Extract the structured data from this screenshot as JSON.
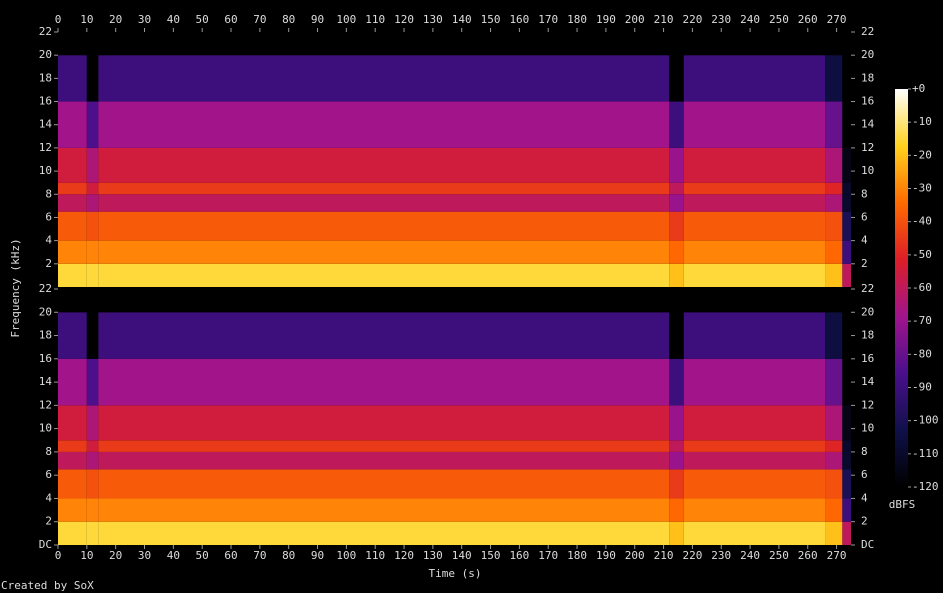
{
  "chart_data": {
    "type": "spectrogram",
    "xlabel": "Time (s)",
    "ylabel": "Frequency (kHz)",
    "footer": "Created by SoX",
    "xlim": [
      0,
      275
    ],
    "xticks": [
      0,
      10,
      20,
      30,
      40,
      50,
      60,
      70,
      80,
      90,
      100,
      110,
      120,
      130,
      140,
      150,
      160,
      170,
      180,
      190,
      200,
      210,
      220,
      230,
      240,
      250,
      260,
      270
    ],
    "colormap": [
      "#000000",
      "#10104a",
      "#4a0f8c",
      "#a0148c",
      "#dc1e28",
      "#ff6a00",
      "#ffd21e",
      "#ffffff"
    ],
    "colorbar": {
      "label": "dBFS",
      "lim": [
        -120,
        0
      ],
      "ticks": [
        {
          "value": 0,
          "label": "+0"
        },
        -10,
        -20,
        -30,
        -40,
        -50,
        -60,
        -70,
        -80,
        -90,
        -100,
        -110,
        -120
      ]
    },
    "time_edges": [
      0,
      10,
      14,
      212,
      217,
      266,
      272,
      275
    ],
    "freq_edges": [
      0,
      2,
      4,
      6.5,
      8,
      9,
      12,
      16,
      20,
      22
    ],
    "channels": [
      {
        "ylim": [
          0,
          22
        ],
        "yticks": [
          2,
          4,
          6,
          8,
          10,
          12,
          14,
          16,
          18,
          20,
          22
        ],
        "levels": [
          [
            -15,
            -30,
            -38,
            -60,
            -45,
            -55,
            -68,
            -90,
            -120
          ],
          [
            -15,
            -30,
            -40,
            -65,
            -55,
            -65,
            -85,
            -120,
            -120
          ],
          [
            -15,
            -30,
            -38,
            -60,
            -45,
            -55,
            -68,
            -90,
            -120
          ],
          [
            -20,
            -35,
            -45,
            -70,
            -60,
            -70,
            -90,
            -120,
            -120
          ],
          [
            -15,
            -30,
            -38,
            -60,
            -45,
            -55,
            -68,
            -90,
            -120
          ],
          [
            -20,
            -35,
            -40,
            -65,
            -50,
            -65,
            -80,
            -105,
            -120
          ],
          [
            -60,
            -90,
            -100,
            -110,
            -110,
            -115,
            -120,
            -120,
            -120
          ]
        ]
      },
      {
        "ylim": [
          0,
          22
        ],
        "yticks": [
          {
            "value": 0,
            "label": "DC"
          },
          2,
          4,
          6,
          8,
          10,
          12,
          14,
          16,
          18,
          20,
          22
        ],
        "levels": [
          [
            -15,
            -30,
            -38,
            -60,
            -45,
            -55,
            -68,
            -90,
            -120
          ],
          [
            -15,
            -30,
            -40,
            -65,
            -55,
            -65,
            -85,
            -120,
            -120
          ],
          [
            -15,
            -30,
            -38,
            -60,
            -45,
            -55,
            -68,
            -90,
            -120
          ],
          [
            -20,
            -35,
            -45,
            -70,
            -60,
            -70,
            -90,
            -120,
            -120
          ],
          [
            -15,
            -30,
            -38,
            -60,
            -45,
            -55,
            -68,
            -90,
            -120
          ],
          [
            -20,
            -35,
            -40,
            -65,
            -50,
            -65,
            -80,
            -105,
            -120
          ],
          [
            -60,
            -90,
            -100,
            -110,
            -110,
            -115,
            -120,
            -120,
            -120
          ]
        ]
      }
    ]
  }
}
